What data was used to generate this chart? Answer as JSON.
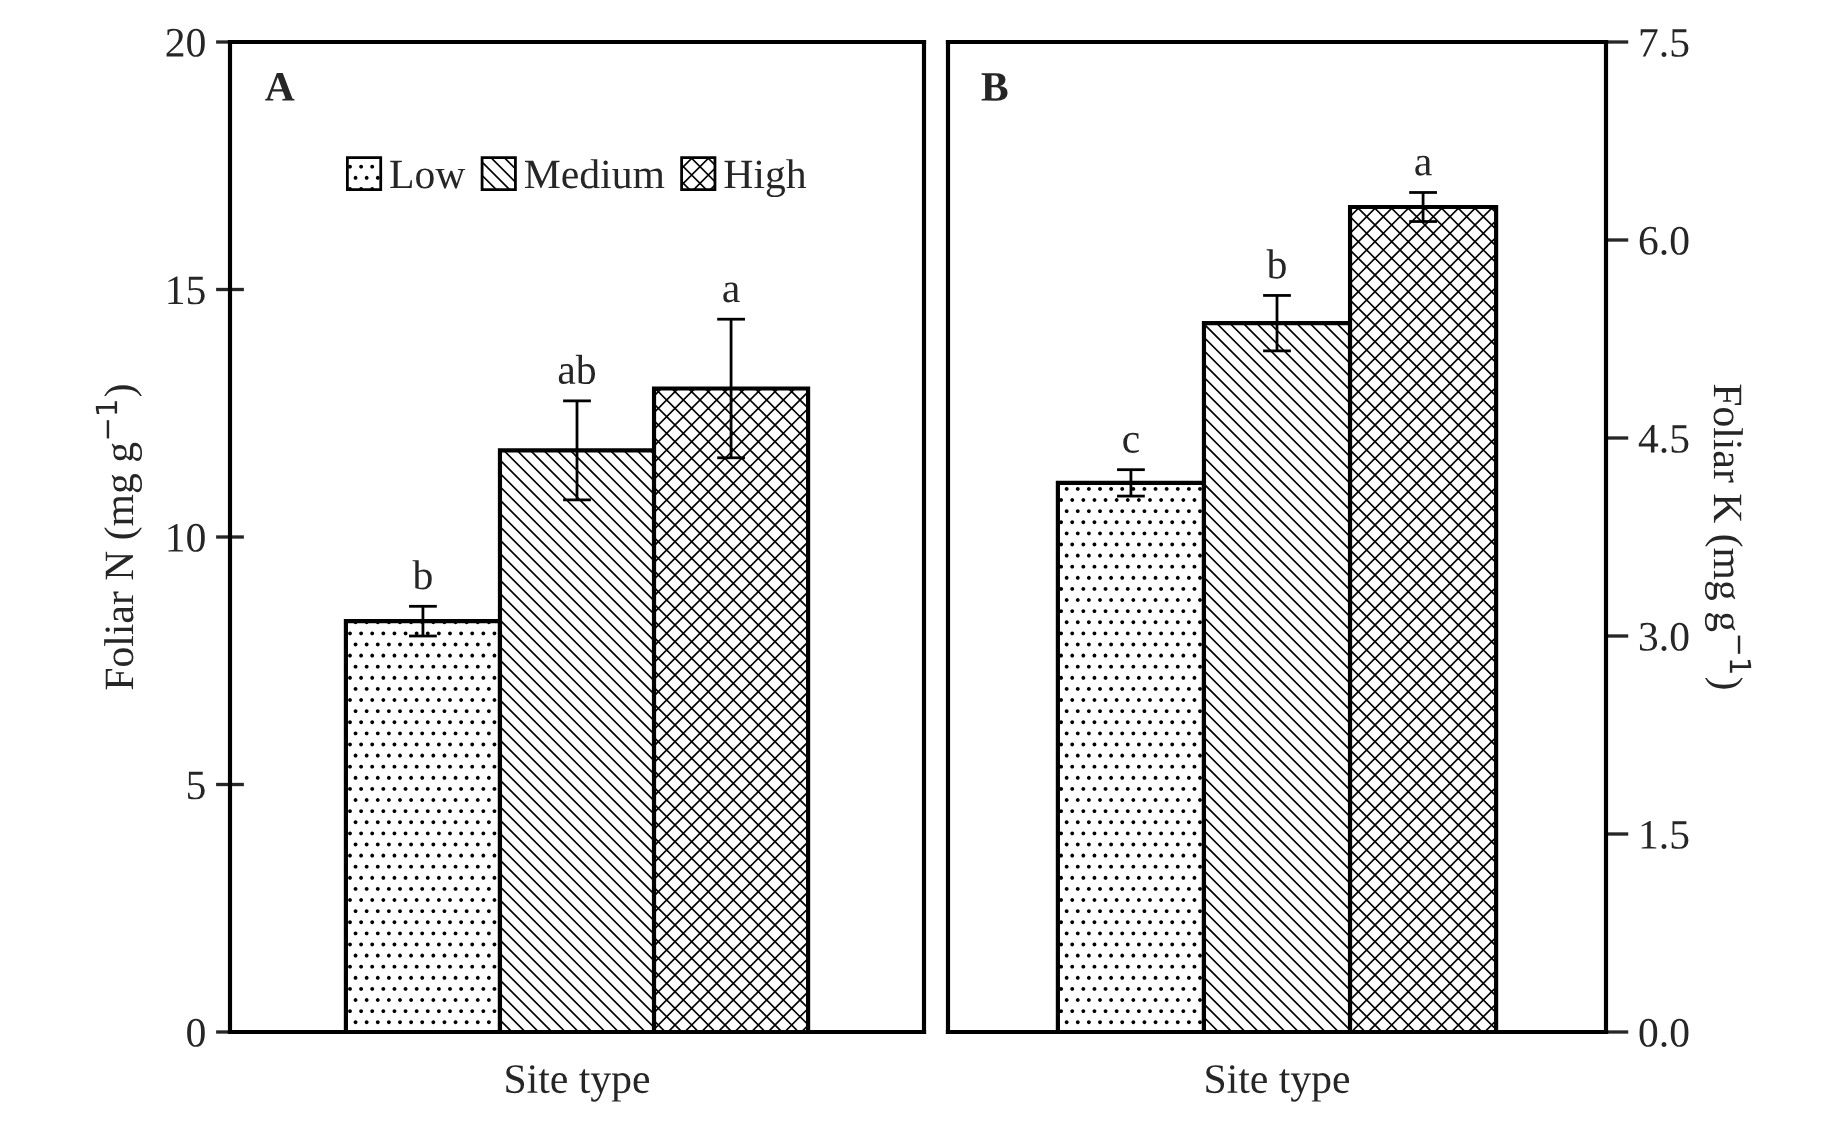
{
  "chart_data": [
    {
      "type": "bar",
      "categories": [
        null
      ],
      "xlabel": "Site type",
      "ylabel": "Foliar N (mg g$^{−1}$)",
      "ylim": [
        0,
        20
      ],
      "yticks": [
        0,
        5,
        10,
        15,
        20
      ],
      "legend": "top",
      "annotations": [
        "A"
      ],
      "series": [
        {
          "name": "Low",
          "color": "#000000",
          "values": [
            8.3
          ],
          "errors": [
            0.3
          ],
          "value_labels": [
            "b"
          ]
        },
        {
          "name": "Medium",
          "color": "#000000",
          "values": [
            11.75
          ],
          "errors": [
            1.0
          ],
          "value_labels": [
            "ab"
          ]
        },
        {
          "name": "High",
          "color": "#000000",
          "values": [
            13.0
          ],
          "errors": [
            1.4
          ],
          "value_labels": [
            "a"
          ]
        }
      ]
    },
    {
      "type": "bar",
      "categories": [
        null
      ],
      "xlabel": "Site type",
      "ylabel": "Foliar K (mg g$^{−1}$)",
      "ylim": [
        0,
        7.5
      ],
      "yticks": [
        {
          "value": 0,
          "label": "0.0"
        },
        1.5,
        {
          "value": 3,
          "label": "3.0"
        },
        4.5,
        {
          "value": 6,
          "label": "6.0"
        },
        7.5
      ],
      "annotations": [
        "B"
      ],
      "series": [
        {
          "color": "#000000",
          "values": [
            4.16
          ],
          "errors": [
            0.1
          ],
          "value_labels": [
            "c"
          ]
        },
        {
          "color": "#000000",
          "values": [
            5.37
          ],
          "errors": [
            0.21
          ],
          "value_labels": [
            "b"
          ]
        },
        {
          "color": "#000000",
          "values": [
            6.25
          ],
          "errors": [
            0.11
          ],
          "value_labels": [
            "a"
          ]
        }
      ]
    }
  ]
}
